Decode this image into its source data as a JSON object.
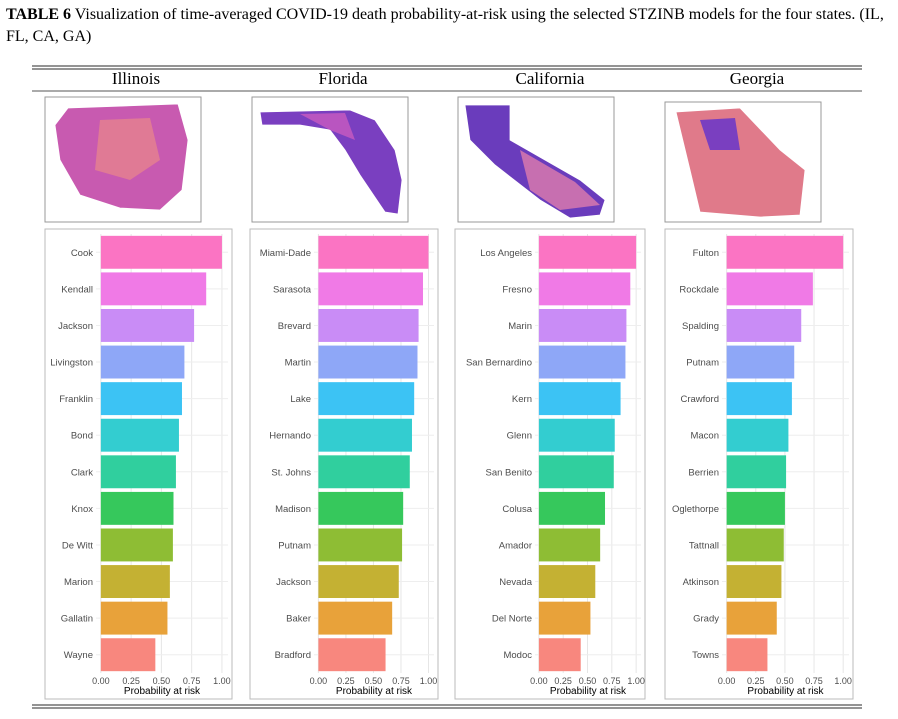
{
  "caption": {
    "label": "TABLE 6",
    "text": "Visualization of time-averaged COVID-19 death probability-at-risk using the selected STZINB models for the four states. (IL, FL, CA, GA)"
  },
  "columns": [
    "Illinois",
    "Florida",
    "California",
    "Georgia"
  ],
  "chart_data": [
    {
      "type": "bar",
      "orientation": "horizontal",
      "categories": [
        "Cook",
        "Kendall",
        "Jackson",
        "Livingston",
        "Franklin",
        "Bond",
        "Clark",
        "Knox",
        "De Witt",
        "Marion",
        "Gallatin",
        "Wayne"
      ],
      "values": [
        1.0,
        0.87,
        0.77,
        0.69,
        0.67,
        0.645,
        0.62,
        0.6,
        0.595,
        0.57,
        0.55,
        0.45
      ],
      "colors": [
        "#fb74c3",
        "#f07ae6",
        "#c98cf6",
        "#8ea7f7",
        "#3cc3f4",
        "#33cdd0",
        "#30cf9e",
        "#36c85c",
        "#8ebd34",
        "#c4b133",
        "#e8a23a",
        "#f8877e"
      ],
      "xlabel": "Probability at risk",
      "xlim": [
        -0.04,
        1.05
      ],
      "xticks": [
        {
          "value": 0,
          "label": "0.00"
        },
        {
          "value": 0.25,
          "label": "0.25"
        },
        {
          "value": 0.5,
          "label": "0.50"
        },
        {
          "value": 0.75,
          "label": "0.75"
        },
        {
          "value": 1,
          "label": "1.00"
        }
      ],
      "grid": true
    },
    {
      "type": "bar",
      "orientation": "horizontal",
      "categories": [
        "Miami-Dade",
        "Sarasota",
        "Brevard",
        "Martin",
        "Lake",
        "Hernando",
        "St. Johns",
        "Madison",
        "Putnam",
        "Jackson",
        "Baker",
        "Bradford"
      ],
      "values": [
        1.0,
        0.95,
        0.91,
        0.9,
        0.87,
        0.85,
        0.83,
        0.77,
        0.76,
        0.73,
        0.67,
        0.61
      ],
      "colors": [
        "#fb74c3",
        "#f07ae6",
        "#c98cf6",
        "#8ea7f7",
        "#3cc3f4",
        "#33cdd0",
        "#30cf9e",
        "#36c85c",
        "#8ebd34",
        "#c4b133",
        "#e8a23a",
        "#f8877e"
      ],
      "xlabel": "Probability at risk",
      "xlim": [
        -0.04,
        1.05
      ],
      "xticks": [
        {
          "value": 0,
          "label": "0.00"
        },
        {
          "value": 0.25,
          "label": "0.25"
        },
        {
          "value": 0.5,
          "label": "0.50"
        },
        {
          "value": 0.75,
          "label": "0.75"
        },
        {
          "value": 1,
          "label": "1.00"
        }
      ],
      "grid": true
    },
    {
      "type": "bar",
      "orientation": "horizontal",
      "categories": [
        "Los Angeles",
        "Fresno",
        "Marin",
        "San Bernardino",
        "Kern",
        "Glenn",
        "San Benito",
        "Colusa",
        "Amador",
        "Nevada",
        "Del Norte",
        "Modoc"
      ],
      "values": [
        1.0,
        0.94,
        0.9,
        0.89,
        0.84,
        0.78,
        0.77,
        0.68,
        0.63,
        0.58,
        0.53,
        0.43
      ],
      "colors": [
        "#fb74c3",
        "#f07ae6",
        "#c98cf6",
        "#8ea7f7",
        "#3cc3f4",
        "#33cdd0",
        "#30cf9e",
        "#36c85c",
        "#8ebd34",
        "#c4b133",
        "#e8a23a",
        "#f8877e"
      ],
      "xlabel": "Probability at risk",
      "xlim": [
        -0.04,
        1.05
      ],
      "xticks": [
        {
          "value": 0,
          "label": "0.00"
        },
        {
          "value": 0.25,
          "label": "0.25"
        },
        {
          "value": 0.5,
          "label": "0.50"
        },
        {
          "value": 0.75,
          "label": "0.75"
        },
        {
          "value": 1,
          "label": "1.00"
        }
      ],
      "grid": true
    },
    {
      "type": "bar",
      "orientation": "horizontal",
      "categories": [
        "Fulton",
        "Rockdale",
        "Spalding",
        "Putnam",
        "Crawford",
        "Macon",
        "Berrien",
        "Oglethorpe",
        "Tattnall",
        "Atkinson",
        "Grady",
        "Towns"
      ],
      "values": [
        1.0,
        0.74,
        0.64,
        0.58,
        0.56,
        0.53,
        0.51,
        0.5,
        0.49,
        0.47,
        0.43,
        0.35
      ],
      "colors": [
        "#fb74c3",
        "#f07ae6",
        "#c98cf6",
        "#8ea7f7",
        "#3cc3f4",
        "#33cdd0",
        "#30cf9e",
        "#36c85c",
        "#8ebd34",
        "#c4b133",
        "#e8a23a",
        "#f8877e"
      ],
      "xlabel": "Probability at risk",
      "xlim": [
        -0.04,
        1.05
      ],
      "xticks": [
        {
          "value": 0,
          "label": "0.00"
        },
        {
          "value": 0.25,
          "label": "0.25"
        },
        {
          "value": 0.5,
          "label": "0.50"
        },
        {
          "value": 0.75,
          "label": "0.75"
        },
        {
          "value": 1,
          "label": "1.00"
        }
      ],
      "grid": true
    }
  ]
}
